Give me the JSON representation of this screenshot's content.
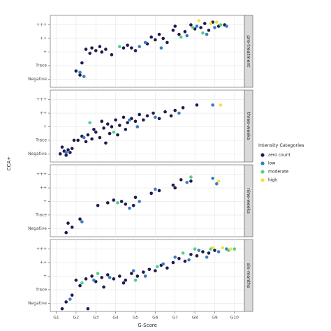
{
  "chart_data": {
    "type": "scatter",
    "x_label": "G-Score",
    "y_label": "CCA+",
    "legend_title": "Intensity Categories",
    "xlim": [
      0.7,
      10.5
    ],
    "ylim": [
      0.4,
      5.7
    ],
    "grid": true,
    "legend_position": "right",
    "xticks": [
      {
        "value": 1,
        "label": "G1"
      },
      {
        "value": 2,
        "label": "G2"
      },
      {
        "value": 3,
        "label": "G3"
      },
      {
        "value": 4,
        "label": "G4"
      },
      {
        "value": 5,
        "label": "G5"
      },
      {
        "value": 6,
        "label": "G6"
      },
      {
        "value": 7,
        "label": "G7"
      },
      {
        "value": 8,
        "label": "G8"
      },
      {
        "value": 9,
        "label": "G9"
      },
      {
        "value": 10,
        "label": "G10"
      }
    ],
    "yticks": [
      {
        "value": 1,
        "label": "Negative"
      },
      {
        "value": 2,
        "label": "Trace"
      },
      {
        "value": 3,
        "label": "+"
      },
      {
        "value": 4,
        "label": "++"
      },
      {
        "value": 5,
        "label": "+++"
      }
    ],
    "panels": [
      {
        "strip": "pre-treatment",
        "series": [
          {
            "name": "zero count",
            "color": "#1f1a4f",
            "x": [
              2.2,
              2.0,
              2.3,
              2.5,
              2.8,
              3.0,
              3.2,
              3.3,
              3.5,
              2.7,
              3.8,
              4.4,
              4.6,
              4.8,
              5.0,
              5.6,
              5.8,
              6.0,
              6.2,
              6.4,
              6.9,
              7.0,
              7.2,
              7.5,
              7.8,
              8.0,
              8.3,
              8.5,
              8.7,
              9.2,
              9.5,
              8.9,
              6.6
            ],
            "values": [
              1.3,
              1.6,
              2.2,
              3.2,
              3.3,
              3.1,
              3.4,
              3.0,
              3.2,
              2.9,
              2.8,
              3.3,
              3.5,
              3.3,
              3.1,
              3.6,
              4.1,
              3.9,
              4.3,
              4.0,
              4.6,
              4.9,
              4.3,
              4.5,
              5.0,
              4.7,
              4.8,
              5.1,
              4.6,
              4.9,
              5.0,
              5.2,
              3.7
            ]
          },
          {
            "name": "low",
            "color": "#3b7dbf",
            "x": [
              2.2,
              2.4,
              5.2,
              6.3,
              7.6,
              8.6,
              9.0,
              9.6,
              5.5,
              8.1
            ],
            "values": [
              1.5,
              1.2,
              3.4,
              3.3,
              4.2,
              4.3,
              4.8,
              4.9,
              3.7,
              4.9
            ]
          },
          {
            "name": "moderate",
            "color": "#52d08a",
            "x": [
              4.2,
              7.3,
              8.4,
              9.3,
              7.9
            ],
            "values": [
              3.4,
              4.1,
              4.4,
              5.0,
              4.8
            ]
          },
          {
            "name": "high",
            "color": "#f2e33c",
            "x": [
              8.2,
              8.8,
              9.1
            ],
            "values": [
              5.3,
              5.1,
              5.2
            ]
          }
        ]
      },
      {
        "strip": "three-weeks",
        "series": [
          {
            "name": "zero count",
            "color": "#1f1a4f",
            "x": [
              1.2,
              1.4,
              1.5,
              1.6,
              1.7,
              1.8,
              1.3,
              2.1,
              2.3,
              2.5,
              2.6,
              2.8,
              3.0,
              3.2,
              3.4,
              3.6,
              3.8,
              3.3,
              4.0,
              4.2,
              4.4,
              4.6,
              4.8,
              5.0,
              5.2,
              5.4,
              5.6,
              5.9,
              6.2,
              6.5,
              6.8,
              7.0,
              7.4,
              8.1,
              3.5,
              4.1,
              2.9,
              1.9,
              3.7,
              4.5
            ],
            "values": [
              1.0,
              1.2,
              0.9,
              1.3,
              1.1,
              1.4,
              1.5,
              2.0,
              2.3,
              1.9,
              2.4,
              2.1,
              2.6,
              2.2,
              2.9,
              3.2,
              3.0,
              3.4,
              3.5,
              3.1,
              3.7,
              3.3,
              3.6,
              3.4,
              3.9,
              3.5,
              3.8,
              4.0,
              3.6,
              4.1,
              3.8,
              4.2,
              4.4,
              4.6,
              1.8,
              2.4,
              2.8,
              2.0,
              2.5,
              2.8
            ]
          },
          {
            "name": "low",
            "color": "#3b7dbf",
            "x": [
              1.5,
              2.4,
              4.7,
              5.1,
              6.0,
              7.2,
              8.9
            ],
            "values": [
              1.1,
              2.2,
              3.5,
              3.0,
              3.7,
              4.0,
              4.6
            ]
          },
          {
            "name": "moderate",
            "color": "#52d08a",
            "x": [
              2.7,
              3.9
            ],
            "values": [
              3.3,
              2.6
            ]
          },
          {
            "name": "high",
            "color": "#f2e33c",
            "x": [
              9.3
            ],
            "values": [
              4.6
            ]
          }
        ]
      },
      {
        "strip": "nine-weeks",
        "series": [
          {
            "name": "zero count",
            "color": "#1f1a4f",
            "x": [
              1.5,
              1.8,
              1.6,
              2.2,
              3.1,
              3.6,
              3.9,
              4.3,
              4.5,
              4.9,
              5.0,
              5.8,
              6.2,
              6.9,
              7.3,
              7.8,
              7.0
            ],
            "values": [
              0.7,
              1.1,
              1.4,
              1.7,
              2.7,
              2.9,
              3.1,
              3.0,
              2.8,
              2.7,
              3.3,
              3.6,
              3.8,
              4.2,
              4.6,
              4.5,
              4.0
            ]
          },
          {
            "name": "low",
            "color": "#3b7dbf",
            "x": [
              2.3,
              4.7,
              5.2,
              6.0,
              7.6,
              8.9,
              9.1
            ],
            "values": [
              1.5,
              2.5,
              3.0,
              3.9,
              4.4,
              4.7,
              4.3
            ]
          },
          {
            "name": "moderate",
            "color": "#52d08a",
            "x": [
              7.8,
              4.1
            ],
            "values": [
              4.8,
              2.9
            ]
          },
          {
            "name": "high",
            "color": "#f2e33c",
            "x": [
              9.2
            ],
            "values": [
              4.5
            ]
          }
        ]
      },
      {
        "strip": "six-months",
        "series": [
          {
            "name": "zero count",
            "color": "#1f1a4f",
            "x": [
              1.3,
              1.5,
              1.8,
              2.2,
              2.5,
              2.8,
              3.0,
              3.3,
              3.6,
              3.9,
              4.2,
              4.5,
              4.8,
              5.1,
              5.4,
              5.7,
              6.0,
              6.3,
              6.6,
              6.9,
              7.2,
              7.5,
              7.8,
              8.1,
              8.4,
              8.7,
              9.0,
              2.0,
              3.4,
              4.4,
              2.6
            ],
            "values": [
              0.6,
              1.1,
              1.6,
              2.3,
              2.8,
              3.0,
              2.6,
              2.9,
              3.1,
              2.8,
              3.0,
              2.7,
              3.2,
              3.0,
              3.3,
              3.5,
              3.4,
              3.8,
              3.6,
              4.0,
              4.3,
              4.1,
              4.6,
              4.5,
              4.8,
              4.7,
              4.9,
              2.7,
              2.2,
              2.5,
              0.6
            ]
          },
          {
            "name": "low",
            "color": "#3b7dbf",
            "x": [
              1.7,
              2.9,
              3.7,
              4.9,
              5.5,
              6.4,
              7.0,
              7.7,
              8.2,
              8.6,
              9.2,
              9.6
            ],
            "values": [
              1.3,
              2.7,
              2.9,
              3.4,
              3.0,
              3.9,
              4.4,
              4.2,
              4.9,
              4.4,
              4.8,
              5.0
            ]
          },
          {
            "name": "moderate",
            "color": "#52d08a",
            "x": [
              2.3,
              3.1,
              5.0,
              6.1,
              7.4,
              8.0,
              8.8,
              9.7,
              10.0
            ],
            "values": [
              2.5,
              3.2,
              2.7,
              3.7,
              4.7,
              5.0,
              5.0,
              4.9,
              5.0
            ]
          },
          {
            "name": "high",
            "color": "#f2e33c",
            "x": [
              8.9,
              9.4,
              9.8
            ],
            "values": [
              5.1,
              5.1,
              5.0
            ]
          }
        ]
      }
    ]
  }
}
